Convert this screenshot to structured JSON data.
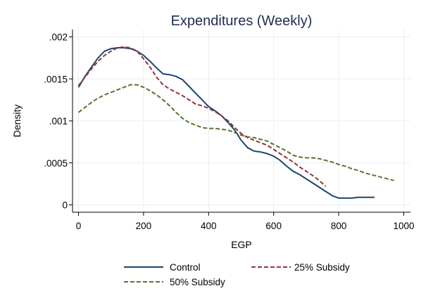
{
  "chart_data": {
    "type": "line",
    "title": "Expenditures (Weekly)",
    "xlabel": "EGP",
    "ylabel": "Density",
    "xlim": [
      0,
      1000
    ],
    "ylim": [
      0,
      0.002
    ],
    "x_ticks": [
      {
        "value": 0,
        "label": "0"
      },
      {
        "value": 200,
        "label": "200"
      },
      {
        "value": 400,
        "label": "400"
      },
      {
        "value": 600,
        "label": "600"
      },
      {
        "value": 800,
        "label": "800"
      },
      {
        "value": 1000,
        "label": "1000"
      }
    ],
    "y_ticks": [
      {
        "value": 0,
        "label": "0"
      },
      {
        "value": 0.0005,
        "label": ".0005"
      },
      {
        "value": 0.001,
        "label": ".001"
      },
      {
        "value": 0.0015,
        "label": ".0015"
      },
      {
        "value": 0.002,
        "label": ".002"
      }
    ],
    "grid": true,
    "legend_position": "bottom",
    "series": [
      {
        "name": "Control",
        "color": "#1a476f",
        "dash": "solid",
        "points": [
          [
            0,
            0.0014
          ],
          [
            20,
            0.00153
          ],
          [
            40,
            0.00164
          ],
          [
            60,
            0.00175
          ],
          [
            80,
            0.00183
          ],
          [
            100,
            0.00186
          ],
          [
            120,
            0.00187
          ],
          [
            140,
            0.00187
          ],
          [
            160,
            0.00186
          ],
          [
            180,
            0.00183
          ],
          [
            200,
            0.00178
          ],
          [
            220,
            0.00171
          ],
          [
            240,
            0.00163
          ],
          [
            260,
            0.00156
          ],
          [
            280,
            0.00155
          ],
          [
            300,
            0.00153
          ],
          [
            320,
            0.00149
          ],
          [
            340,
            0.00141
          ],
          [
            360,
            0.00133
          ],
          [
            380,
            0.00125
          ],
          [
            400,
            0.00117
          ],
          [
            420,
            0.00112
          ],
          [
            440,
            0.00106
          ],
          [
            460,
            0.00098
          ],
          [
            480,
            0.00089
          ],
          [
            500,
            0.00077
          ],
          [
            520,
            0.00068
          ],
          [
            540,
            0.00064
          ],
          [
            560,
            0.00063
          ],
          [
            580,
            0.00061
          ],
          [
            600,
            0.00058
          ],
          [
            620,
            0.00053
          ],
          [
            640,
            0.00046
          ],
          [
            660,
            0.0004
          ],
          [
            680,
            0.00036
          ],
          [
            700,
            0.00031
          ],
          [
            720,
            0.00026
          ],
          [
            740,
            0.00021
          ],
          [
            760,
            0.00016
          ],
          [
            780,
            0.00011
          ],
          [
            800,
            8e-05
          ],
          [
            820,
            8e-05
          ],
          [
            840,
            8e-05
          ],
          [
            860,
            9e-05
          ],
          [
            880,
            9e-05
          ],
          [
            900,
            9e-05
          ],
          [
            910,
            9e-05
          ]
        ]
      },
      {
        "name": "25% Subsidy",
        "color": "#90353b",
        "dash": "dashed",
        "points": [
          [
            0,
            0.00142
          ],
          [
            20,
            0.00152
          ],
          [
            40,
            0.00162
          ],
          [
            60,
            0.00171
          ],
          [
            80,
            0.00178
          ],
          [
            100,
            0.00183
          ],
          [
            120,
            0.00187
          ],
          [
            140,
            0.00188
          ],
          [
            160,
            0.00187
          ],
          [
            180,
            0.00183
          ],
          [
            200,
            0.00174
          ],
          [
            220,
            0.00164
          ],
          [
            240,
            0.00152
          ],
          [
            260,
            0.00143
          ],
          [
            280,
            0.00138
          ],
          [
            300,
            0.00134
          ],
          [
            320,
            0.0013
          ],
          [
            340,
            0.00125
          ],
          [
            360,
            0.0012
          ],
          [
            380,
            0.00118
          ],
          [
            400,
            0.00115
          ],
          [
            420,
            0.00111
          ],
          [
            440,
            0.00106
          ],
          [
            460,
            0.001
          ],
          [
            480,
            0.00092
          ],
          [
            500,
            0.00085
          ],
          [
            520,
            0.0008
          ],
          [
            540,
            0.00077
          ],
          [
            560,
            0.00074
          ],
          [
            580,
            0.00071
          ],
          [
            600,
            0.00066
          ],
          [
            620,
            0.00061
          ],
          [
            640,
            0.00056
          ],
          [
            660,
            0.00051
          ],
          [
            680,
            0.00045
          ],
          [
            700,
            0.0004
          ],
          [
            720,
            0.00035
          ],
          [
            740,
            0.00029
          ],
          [
            760,
            0.00022
          ]
        ]
      },
      {
        "name": "50% Subsidy",
        "color": "#55752f",
        "dash": "dashed",
        "points": [
          [
            0,
            0.0011
          ],
          [
            20,
            0.00116
          ],
          [
            40,
            0.00122
          ],
          [
            60,
            0.00127
          ],
          [
            80,
            0.00131
          ],
          [
            100,
            0.00134
          ],
          [
            120,
            0.00137
          ],
          [
            140,
            0.0014
          ],
          [
            160,
            0.00143
          ],
          [
            180,
            0.00143
          ],
          [
            200,
            0.0014
          ],
          [
            220,
            0.00136
          ],
          [
            240,
            0.00131
          ],
          [
            260,
            0.00125
          ],
          [
            280,
            0.00118
          ],
          [
            300,
            0.0011
          ],
          [
            320,
            0.00103
          ],
          [
            340,
            0.00098
          ],
          [
            360,
            0.00095
          ],
          [
            380,
            0.00092
          ],
          [
            400,
            0.00091
          ],
          [
            420,
            0.00091
          ],
          [
            440,
            0.0009
          ],
          [
            460,
            0.00089
          ],
          [
            480,
            0.00086
          ],
          [
            500,
            0.00083
          ],
          [
            520,
            0.00081
          ],
          [
            540,
            0.0008
          ],
          [
            560,
            0.00078
          ],
          [
            580,
            0.00076
          ],
          [
            600,
            0.00072
          ],
          [
            620,
            0.00068
          ],
          [
            640,
            0.00064
          ],
          [
            660,
            0.00059
          ],
          [
            680,
            0.00057
          ],
          [
            700,
            0.00056
          ],
          [
            720,
            0.00056
          ],
          [
            740,
            0.00055
          ],
          [
            760,
            0.00053
          ],
          [
            780,
            0.00051
          ],
          [
            800,
            0.00048
          ],
          [
            820,
            0.00046
          ],
          [
            840,
            0.00043
          ],
          [
            860,
            0.00041
          ],
          [
            880,
            0.00038
          ],
          [
            900,
            0.00036
          ],
          [
            920,
            0.00034
          ],
          [
            940,
            0.00032
          ],
          [
            960,
            0.0003
          ],
          [
            970,
            0.00029
          ]
        ]
      }
    ]
  }
}
